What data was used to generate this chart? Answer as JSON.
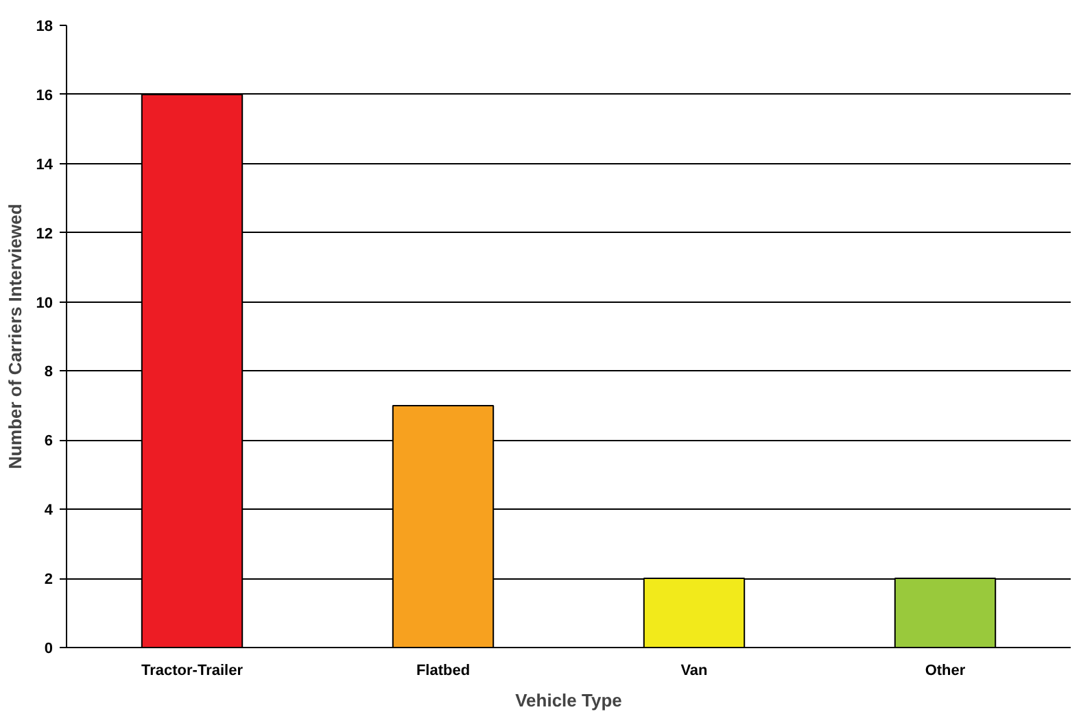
{
  "chart_data": {
    "type": "bar",
    "xlabel": "Vehicle Type",
    "ylabel": "Number of Carriers Interviewed",
    "categories": [
      "Tractor-Trailer",
      "Flatbed",
      "Van",
      "Other"
    ],
    "values": [
      16,
      7,
      2,
      2
    ],
    "colors": [
      "#ed1c24",
      "#f7a11f",
      "#f2ea1b",
      "#99c93c"
    ],
    "ylim": [
      0,
      18
    ],
    "yticks": [
      0,
      2,
      4,
      6,
      8,
      10,
      12,
      14,
      16,
      18
    ],
    "grid": "y"
  }
}
